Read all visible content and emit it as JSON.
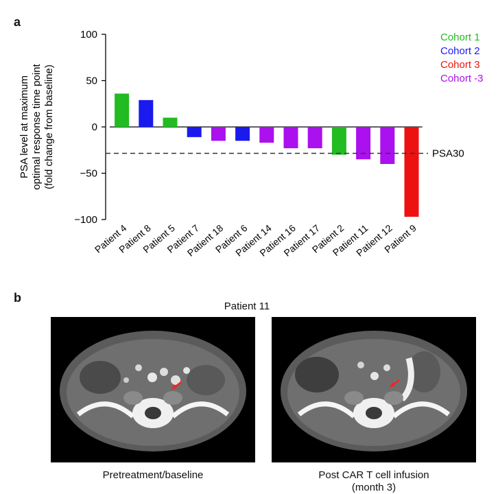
{
  "panel_a_letter": "a",
  "panel_b_letter": "b",
  "chart_data": {
    "type": "bar",
    "ylabel_lines": [
      "PSA level at maximum",
      "optimal response time point",
      "(fold change from baseline)"
    ],
    "ylim": [
      -100,
      100
    ],
    "yticks": [
      100,
      50,
      0,
      -50,
      -100
    ],
    "ytick_labels": [
      "100",
      "50",
      "0",
      "−50",
      "−100"
    ],
    "categories": [
      "Patient 4",
      "Patient 8",
      "Patient 5",
      "Patient 7",
      "Patient 18",
      "Patient 6",
      "Patient 14",
      "Patient 16",
      "Patient 17",
      "Patient 2",
      "Patient 11",
      "Patient 12",
      "Patient 9"
    ],
    "values": [
      36,
      29,
      10,
      -11,
      -15,
      -15,
      -17,
      -23,
      -23,
      -30,
      -35,
      -40,
      -97
    ],
    "cohorts": [
      "Cohort  1",
      "Cohort  2",
      "Cohort  1",
      "Cohort  2",
      "Cohort -3",
      "Cohort  2",
      "Cohort -3",
      "Cohort -3",
      "Cohort -3",
      "Cohort  1",
      "Cohort -3",
      "Cohort -3",
      "Cohort  3"
    ],
    "threshold": {
      "value": -30,
      "label": "PSA30"
    },
    "legend": [
      {
        "name": "Cohort  1",
        "color": "#22bb22"
      },
      {
        "name": "Cohort  2",
        "color": "#1a1aee"
      },
      {
        "name": "Cohort  3",
        "color": "#ee1111"
      },
      {
        "name": "Cohort -3",
        "color": "#aa11ee"
      }
    ],
    "legend_position": "top-right",
    "grid": false
  },
  "panel_b": {
    "title": "Patient 11",
    "images": [
      {
        "caption_lines": [
          "Pretreatment/baseline"
        ]
      },
      {
        "caption_lines": [
          "Post CAR T cell infusion",
          "(month 3)"
        ]
      }
    ]
  }
}
